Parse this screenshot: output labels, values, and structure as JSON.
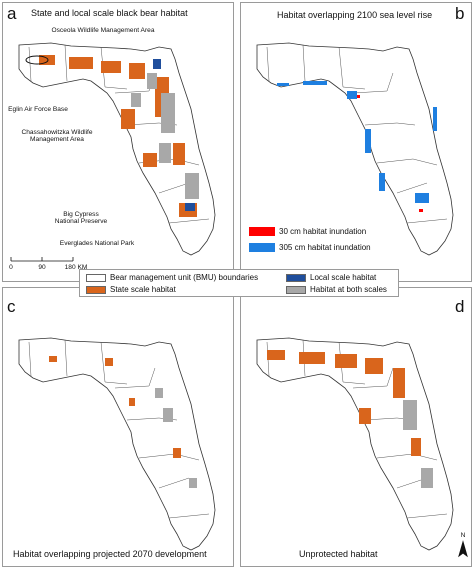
{
  "panels": {
    "a": {
      "label": "a",
      "title": "State and local scale black bear habitat",
      "annotations": {
        "osceola": "Osceola Wildlife Management Area",
        "eglin": "Eglin Air Force Base",
        "chassa": "Chassahowitzka Wildlife Management Area",
        "bigcypress": "Big Cypress National Preserve",
        "everglades": "Everglades National Park"
      },
      "scale_bar": {
        "ticks": [
          "0",
          "90",
          "180 KM"
        ]
      }
    },
    "b": {
      "label": "b",
      "title": "Habitat overlapping 2100 sea level rise",
      "legend": [
        {
          "label": "30 cm habitat inundation",
          "color": "#ff0000"
        },
        {
          "label": "305 cm habitat inundation",
          "color": "#1e7fe0"
        }
      ]
    },
    "c": {
      "label": "c",
      "title": "Habitat overlapping projected 2070 development"
    },
    "d": {
      "label": "d",
      "title": "Unprotected habitat",
      "north": "N"
    }
  },
  "shared_legend": [
    {
      "label": "Bear management unit (BMU) boundaries",
      "color": "#ffffff"
    },
    {
      "label": "Local scale habitat",
      "color": "#1f4e9c"
    },
    {
      "label": "State scale habitat",
      "color": "#d9651c"
    },
    {
      "label": "Habitat at both scales",
      "color": "#a8a8a8"
    }
  ],
  "colors": {
    "state": "#d9651c",
    "local": "#1f4e9c",
    "both": "#a8a8a8",
    "slr30": "#ff0000",
    "slr305": "#1e7fe0",
    "outline": "#333333"
  }
}
